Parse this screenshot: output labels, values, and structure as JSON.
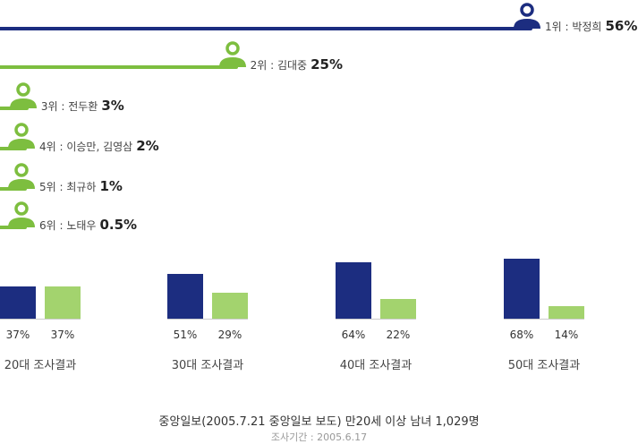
{
  "colors": {
    "navy": "#1c2d80",
    "green": "#7dbe3f",
    "light_green": "#a3d36e"
  },
  "chart_data": [
    {
      "type": "bar",
      "orientation": "horizontal",
      "max_value": 56,
      "items": [
        {
          "rank": "1위",
          "name": "박정희",
          "label": "1위 : 박정희",
          "value": 56,
          "display": "56%",
          "color": "navy",
          "icon": "person-icon"
        },
        {
          "rank": "2위",
          "name": "김대중",
          "label": "2위 : 김대중",
          "value": 25,
          "display": "25%",
          "color": "green",
          "icon": "person-icon"
        },
        {
          "rank": "3위",
          "name": "전두환",
          "label": "3위 : 전두환",
          "value": 3,
          "display": "3%",
          "color": "green",
          "icon": "person-icon"
        },
        {
          "rank": "4위",
          "name": "이승만, 김영삼",
          "label": "4위 : 이승만, 김영삼",
          "value": 2,
          "display": "2%",
          "color": "green",
          "icon": "person-icon"
        },
        {
          "rank": "5위",
          "name": "최규하",
          "label": "5위 : 최규하",
          "value": 1,
          "display": "1%",
          "color": "green",
          "icon": "person-icon"
        },
        {
          "rank": "6위",
          "name": "노태우",
          "label": "6위 : 노태우",
          "value": 0.5,
          "display": "0.5%",
          "color": "green",
          "icon": "person-icon"
        }
      ]
    },
    {
      "type": "bar",
      "groups": [
        {
          "title": "20대 조사결과",
          "values": [
            37,
            37
          ],
          "labels": [
            "37%",
            "37%"
          ]
        },
        {
          "title": "30대 조사결과",
          "values": [
            51,
            29
          ],
          "labels": [
            "51%",
            "29%"
          ]
        },
        {
          "title": "40대 조사결과",
          "values": [
            64,
            22
          ],
          "labels": [
            "64%",
            "22%"
          ]
        },
        {
          "title": "50대 조사결과",
          "values": [
            68,
            14
          ],
          "labels": [
            "68%",
            "14%"
          ]
        }
      ],
      "series_colors": [
        "navy",
        "light_green"
      ]
    }
  ],
  "footer": {
    "source": "중앙일보(2005.7.21 중앙일보 보도) 만20세 이상 남녀 1,029명",
    "period": "조사기간 : 2005.6.17"
  }
}
